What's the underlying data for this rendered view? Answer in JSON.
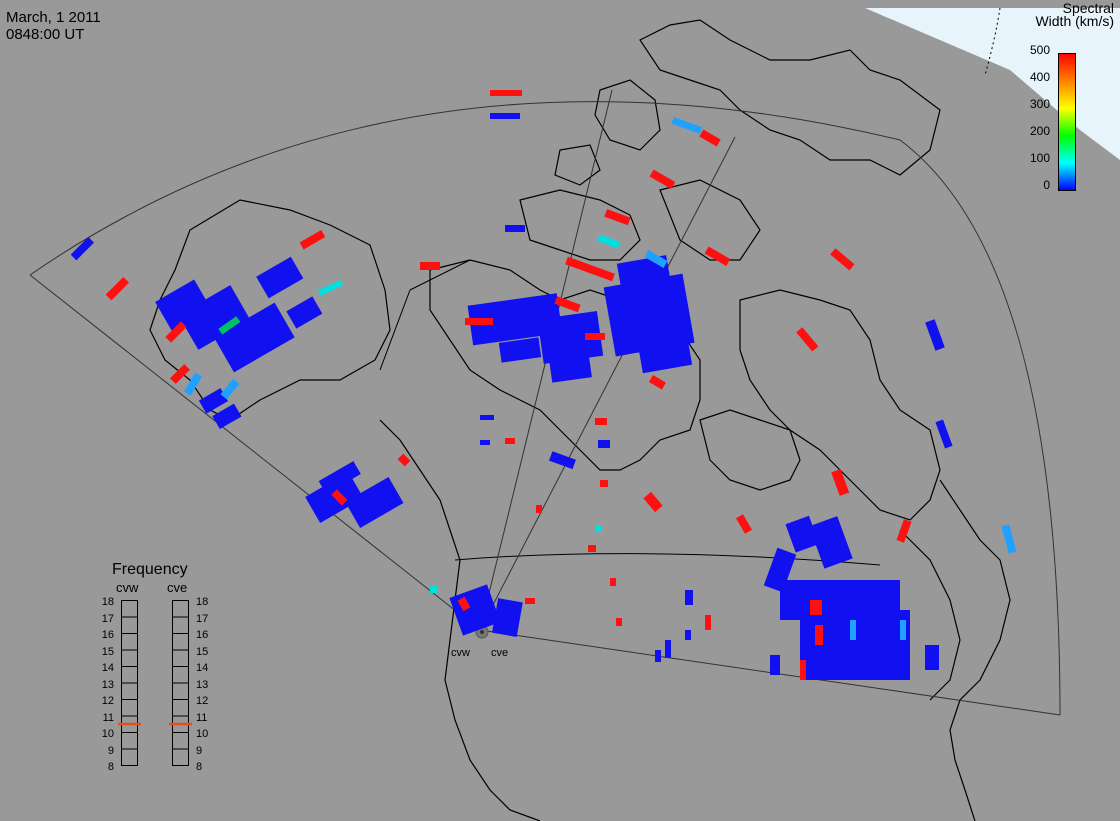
{
  "header": {
    "date": "March, 1 2011",
    "time": "0848:00 UT"
  },
  "colorbar": {
    "title_line1": "Spectral",
    "title_line2": "Width (km/s)",
    "ticks": [
      "500",
      "400",
      "300",
      "200",
      "100",
      "0"
    ],
    "min": 0,
    "max": 500,
    "colors": [
      "#0000ff",
      "#00ffff",
      "#00ff00",
      "#ffff00",
      "#ff8000",
      "#ff0000"
    ]
  },
  "frequency_panel": {
    "title": "Frequency",
    "radars": [
      "cvw",
      "cve"
    ],
    "levels": [
      "18",
      "17",
      "16",
      "15",
      "14",
      "13",
      "12",
      "11",
      "10",
      "9",
      "8"
    ],
    "current_mhz": {
      "cvw": 11,
      "cve": 11
    },
    "marker_color": "#e05020"
  },
  "radar_labels": {
    "west": "cvw",
    "east": "cve"
  },
  "colors": {
    "background": "#999999",
    "land_outline": "#000000",
    "sunlit_region": "#e8f4fb",
    "fov_line": "#333333",
    "low_width": "#0000ff",
    "high_width": "#ff0000"
  }
}
